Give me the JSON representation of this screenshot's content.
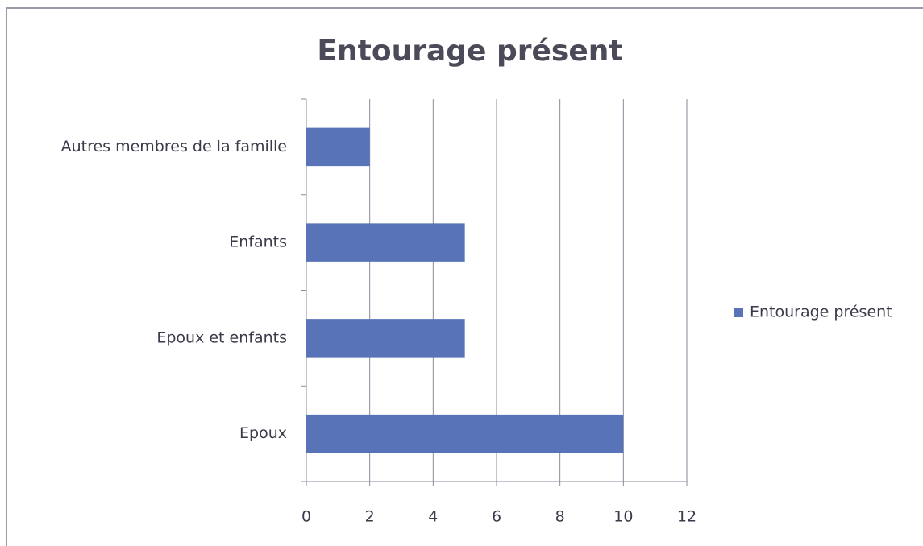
{
  "chart_data": {
    "type": "bar",
    "orientation": "horizontal",
    "title": "Entourage présent",
    "categories": [
      "Autres membres de la famille",
      "Enfants",
      "Epoux et enfants",
      "Epoux"
    ],
    "series": [
      {
        "name": "Entourage présent",
        "color": "#5873b8",
        "values": [
          2,
          5,
          5,
          10
        ]
      }
    ],
    "xlim": [
      0,
      12
    ],
    "xticks": [
      0,
      2,
      4,
      6,
      8,
      10,
      12
    ],
    "grid": true,
    "legend": "right"
  }
}
